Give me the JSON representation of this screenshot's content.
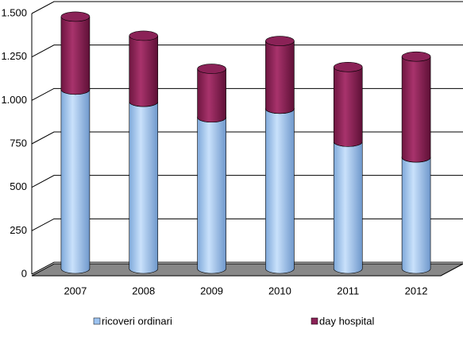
{
  "chart_data": {
    "type": "bar",
    "stacked": true,
    "categories": [
      "2007",
      "2008",
      "2009",
      "2010",
      "2011",
      "2012"
    ],
    "series": [
      {
        "name": "ricoveri ordinari",
        "color": "#9dc3f0",
        "values": [
          1030,
          960,
          870,
          920,
          730,
          640
        ]
      },
      {
        "name": "day hospital",
        "color": "#8b2257",
        "values": [
          420,
          380,
          280,
          390,
          430,
          580
        ]
      }
    ],
    "ylim": [
      0,
      1500
    ],
    "yticks": [
      0,
      250,
      500,
      750,
      {
        "value": 1000,
        "label": "1.000"
      },
      {
        "value": 1250,
        "label": "1.250"
      },
      {
        "value": 1500,
        "label": "1.500"
      }
    ],
    "grid": true
  }
}
